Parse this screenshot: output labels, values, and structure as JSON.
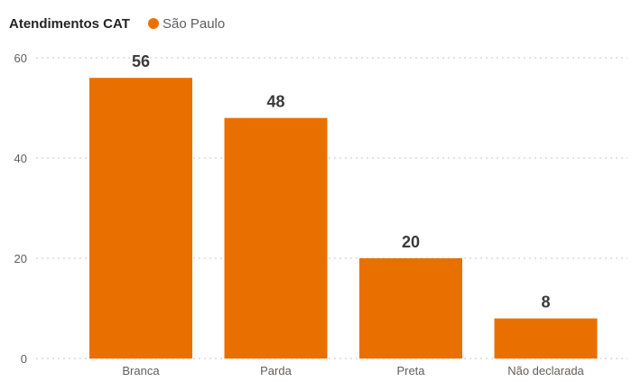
{
  "chart_data": {
    "type": "bar",
    "legend_title": "Atendimentos CAT",
    "legend_placement": "top-left",
    "series": [
      {
        "name": "São Paulo",
        "color": "#E97000",
        "values": [
          56,
          48,
          20,
          8
        ]
      }
    ],
    "categories": [
      "Branca",
      "Parda",
      "Preta",
      "Não declarada"
    ],
    "data_labels": [
      "56",
      "48",
      "20",
      "8"
    ],
    "y_ticks": [
      "0",
      "20",
      "40",
      "60"
    ],
    "ylim": [
      0,
      60
    ],
    "grid": true
  }
}
